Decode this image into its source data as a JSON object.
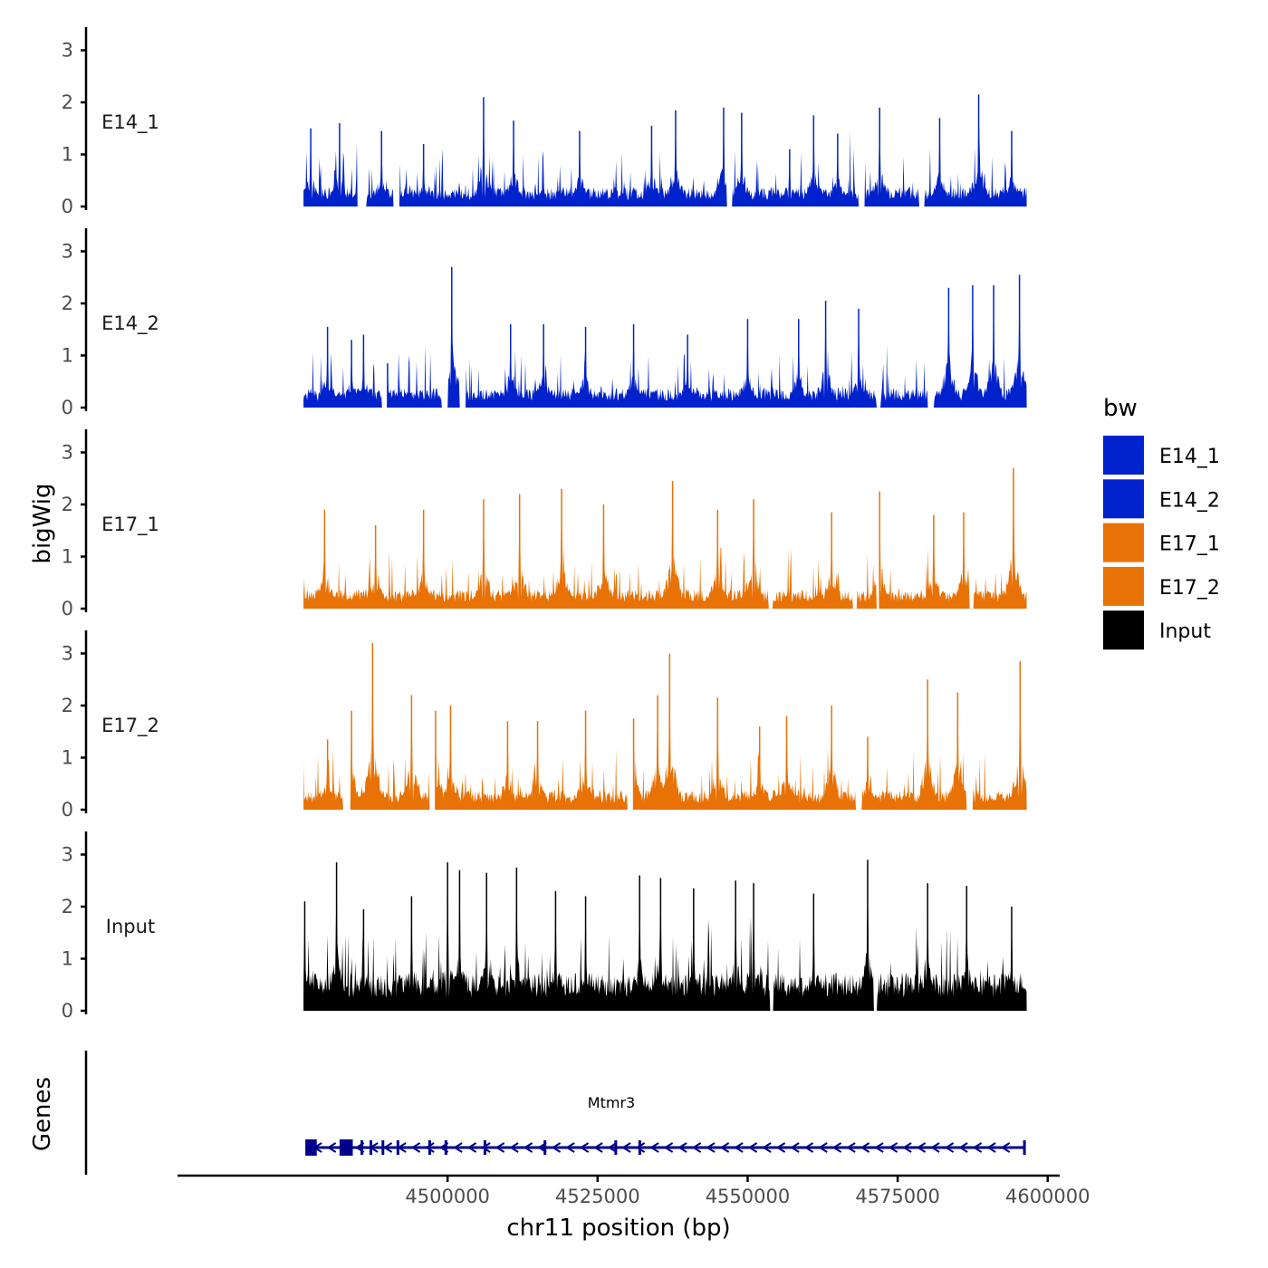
{
  "chart_data": {
    "type": "area",
    "subtype": "genome-browser-coverage-tracks",
    "panel_ylabel": "bigWig",
    "genes_panel_label": "Genes",
    "xlabel": "chr11 position (bp)",
    "xlim": [
      4455000,
      4602000
    ],
    "data_range": [
      4476000,
      4596500
    ],
    "x_ticks": [
      4500000,
      4525000,
      4550000,
      4575000,
      4600000
    ],
    "x_tick_labels": [
      "4500000",
      "4525000",
      "4550000",
      "4575000",
      "4600000"
    ],
    "ylim": [
      0,
      3.4
    ],
    "y_ticks": [
      0,
      1,
      2,
      3
    ],
    "y_tick_labels": [
      "0",
      "1",
      "2",
      "3"
    ],
    "legend": {
      "title": "bw",
      "position": "right",
      "entries": [
        {
          "label": "E14_1",
          "color": "#0022CC"
        },
        {
          "label": "E14_2",
          "color": "#0022CC"
        },
        {
          "label": "E17_1",
          "color": "#E87205"
        },
        {
          "label": "E17_2",
          "color": "#E87205"
        },
        {
          "label": "Input",
          "color": "#000000"
        }
      ]
    },
    "tracks": [
      {
        "name": "E14_1",
        "color": "#0022CC",
        "peaks": [
          [
            4477200,
            1.5
          ],
          [
            4482000,
            1.6
          ],
          [
            4489000,
            1.45
          ],
          [
            4496000,
            1.2
          ],
          [
            4506000,
            2.1
          ],
          [
            4511000,
            1.65
          ],
          [
            4522000,
            1.45
          ],
          [
            4534000,
            1.55
          ],
          [
            4538000,
            1.85
          ],
          [
            4546000,
            1.9
          ],
          [
            4549000,
            1.8
          ],
          [
            4557000,
            1.1
          ],
          [
            4561000,
            1.75
          ],
          [
            4565000,
            1.4
          ],
          [
            4572000,
            1.9
          ],
          [
            4582000,
            1.7
          ],
          [
            4588500,
            2.15
          ],
          [
            4594000,
            1.45
          ]
        ],
        "gaps": [
          [
            4485000,
            4486500
          ],
          [
            4491000,
            4492000
          ],
          [
            4546500,
            4547500
          ],
          [
            4568500,
            4569500
          ],
          [
            4578500,
            4579500
          ]
        ]
      },
      {
        "name": "E14_2",
        "color": "#0022CC",
        "peaks": [
          [
            4480000,
            1.55
          ],
          [
            4484000,
            1.3
          ],
          [
            4486000,
            1.4
          ],
          [
            4490000,
            0.85
          ],
          [
            4500700,
            2.7
          ],
          [
            4510500,
            1.6
          ],
          [
            4516000,
            1.6
          ],
          [
            4523000,
            1.55
          ],
          [
            4531000,
            1.6
          ],
          [
            4540000,
            1.4
          ],
          [
            4550000,
            1.7
          ],
          [
            4558500,
            1.7
          ],
          [
            4563000,
            2.05
          ],
          [
            4568500,
            1.9
          ],
          [
            4583500,
            2.3
          ],
          [
            4587500,
            2.35
          ],
          [
            4591000,
            2.35
          ],
          [
            4595300,
            2.55
          ]
        ],
        "gaps": [
          [
            4489000,
            4490000
          ],
          [
            4499000,
            4500000
          ],
          [
            4502000,
            4503000
          ],
          [
            4571500,
            4572200
          ],
          [
            4580000,
            4581000
          ]
        ]
      },
      {
        "name": "E17_1",
        "color": "#E87205",
        "peaks": [
          [
            4479500,
            1.9
          ],
          [
            4488000,
            1.6
          ],
          [
            4496000,
            1.9
          ],
          [
            4506000,
            2.1
          ],
          [
            4512000,
            2.2
          ],
          [
            4519000,
            2.3
          ],
          [
            4526000,
            2.0
          ],
          [
            4537500,
            2.45
          ],
          [
            4545000,
            1.9
          ],
          [
            4551000,
            2.1
          ],
          [
            4564000,
            1.85
          ],
          [
            4572000,
            2.25
          ],
          [
            4581000,
            1.8
          ],
          [
            4586000,
            1.85
          ],
          [
            4594300,
            2.7
          ]
        ],
        "gaps": [
          [
            4553500,
            4554200
          ],
          [
            4567500,
            4568200
          ],
          [
            4571500,
            4572000
          ],
          [
            4587000,
            4587700
          ]
        ]
      },
      {
        "name": "E17_2",
        "color": "#E87205",
        "peaks": [
          [
            4480000,
            1.35
          ],
          [
            4484000,
            1.9
          ],
          [
            4487500,
            3.2
          ],
          [
            4494000,
            2.2
          ],
          [
            4498000,
            1.9
          ],
          [
            4500500,
            2.0
          ],
          [
            4510000,
            1.7
          ],
          [
            4515000,
            1.7
          ],
          [
            4523000,
            1.9
          ],
          [
            4531000,
            1.75
          ],
          [
            4535000,
            2.2
          ],
          [
            4537000,
            3.0
          ],
          [
            4545000,
            2.15
          ],
          [
            4552000,
            1.6
          ],
          [
            4556500,
            1.8
          ],
          [
            4564000,
            2.0
          ],
          [
            4570000,
            1.4
          ],
          [
            4580000,
            2.5
          ],
          [
            4585000,
            2.25
          ],
          [
            4595400,
            2.85
          ]
        ],
        "gaps": [
          [
            4482500,
            4483800
          ],
          [
            4497000,
            4498000
          ],
          [
            4530000,
            4531000
          ],
          [
            4568000,
            4569000
          ],
          [
            4586500,
            4587500
          ]
        ]
      },
      {
        "name": "Input",
        "color": "#000000",
        "peaks": [
          [
            4476200,
            2.1
          ],
          [
            4481500,
            2.85
          ],
          [
            4486000,
            1.95
          ],
          [
            4494000,
            2.2
          ],
          [
            4500000,
            2.85
          ],
          [
            4502000,
            2.7
          ],
          [
            4506500,
            2.65
          ],
          [
            4511500,
            2.75
          ],
          [
            4518000,
            2.3
          ],
          [
            4523000,
            2.2
          ],
          [
            4532000,
            2.6
          ],
          [
            4535500,
            2.55
          ],
          [
            4541000,
            2.35
          ],
          [
            4548000,
            2.5
          ],
          [
            4551000,
            2.45
          ],
          [
            4561000,
            2.25
          ],
          [
            4570000,
            2.9
          ],
          [
            4580000,
            2.45
          ],
          [
            4586500,
            2.4
          ],
          [
            4594000,
            2.0
          ]
        ],
        "gaps": [
          [
            4553700,
            4554300
          ],
          [
            4571000,
            4571600
          ]
        ]
      }
    ],
    "genes": [
      {
        "name": "Mtmr3",
        "strand": "-",
        "start": 4476300,
        "end": 4596200,
        "color": "#00008B",
        "exons": [
          [
            4476300,
            4478200
          ],
          [
            4482000,
            4484200
          ],
          [
            4485500,
            4485800
          ],
          [
            4487000,
            4487400
          ],
          [
            4489000,
            4489300
          ],
          [
            4491500,
            4491900
          ],
          [
            4496800,
            4497100
          ],
          [
            4499500,
            4499900
          ],
          [
            4506000,
            4506300
          ],
          [
            4516000,
            4516300
          ],
          [
            4527800,
            4528100
          ],
          [
            4531800,
            4532100
          ],
          [
            4595900,
            4596200
          ]
        ]
      }
    ]
  }
}
